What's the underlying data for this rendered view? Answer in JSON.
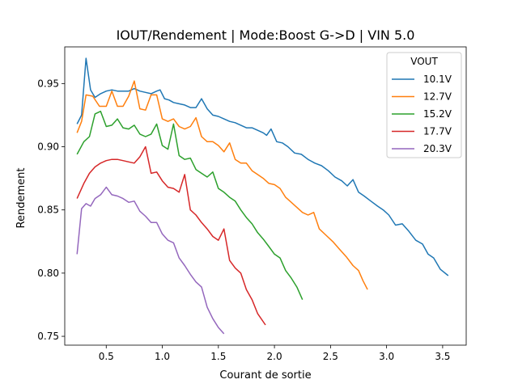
{
  "chart_data": {
    "type": "line",
    "title": "IOUT/Rendement | Mode:Boost G->D | VIN 5.0",
    "xlabel": "Courant de sortie",
    "ylabel": "Rendement",
    "xlim": [
      0.13,
      3.71
    ],
    "ylim": [
      0.743,
      0.979
    ],
    "x_ticks": [
      0.5,
      1.0,
      1.5,
      2.0,
      2.5,
      3.0,
      3.5
    ],
    "x_tick_labels": [
      "0.5",
      "1.0",
      "1.5",
      "2.0",
      "2.5",
      "3.0",
      "3.5"
    ],
    "y_ticks": [
      0.75,
      0.8,
      0.85,
      0.9,
      0.95
    ],
    "y_tick_labels": [
      "0.75",
      "0.80",
      "0.85",
      "0.90",
      "0.95"
    ],
    "grid": false,
    "legend": {
      "title": "VOUT",
      "placement": "top-right"
    },
    "series": [
      {
        "name": "10.1V",
        "color": "#1f77b4",
        "points": [
          [
            0.24,
            0.918
          ],
          [
            0.28,
            0.925
          ],
          [
            0.32,
            0.97
          ],
          [
            0.36,
            0.945
          ],
          [
            0.4,
            0.939
          ],
          [
            0.45,
            0.942
          ],
          [
            0.5,
            0.944
          ],
          [
            0.55,
            0.945
          ],
          [
            0.6,
            0.944
          ],
          [
            0.65,
            0.944
          ],
          [
            0.7,
            0.944
          ],
          [
            0.75,
            0.946
          ],
          [
            0.8,
            0.944
          ],
          [
            0.85,
            0.943
          ],
          [
            0.9,
            0.942
          ],
          [
            0.95,
            0.944
          ],
          [
            0.98,
            0.945
          ],
          [
            1.02,
            0.938
          ],
          [
            1.06,
            0.937
          ],
          [
            1.1,
            0.935
          ],
          [
            1.15,
            0.934
          ],
          [
            1.2,
            0.933
          ],
          [
            1.25,
            0.931
          ],
          [
            1.3,
            0.931
          ],
          [
            1.35,
            0.938
          ],
          [
            1.4,
            0.93
          ],
          [
            1.45,
            0.925
          ],
          [
            1.5,
            0.924
          ],
          [
            1.55,
            0.922
          ],
          [
            1.6,
            0.92
          ],
          [
            1.65,
            0.919
          ],
          [
            1.7,
            0.917
          ],
          [
            1.75,
            0.915
          ],
          [
            1.8,
            0.915
          ],
          [
            1.85,
            0.913
          ],
          [
            1.9,
            0.911
          ],
          [
            1.93,
            0.909
          ],
          [
            1.97,
            0.914
          ],
          [
            2.02,
            0.904
          ],
          [
            2.07,
            0.903
          ],
          [
            2.12,
            0.9
          ],
          [
            2.18,
            0.895
          ],
          [
            2.24,
            0.894
          ],
          [
            2.3,
            0.89
          ],
          [
            2.36,
            0.887
          ],
          [
            2.42,
            0.885
          ],
          [
            2.48,
            0.881
          ],
          [
            2.54,
            0.876
          ],
          [
            2.6,
            0.873
          ],
          [
            2.65,
            0.869
          ],
          [
            2.7,
            0.874
          ],
          [
            2.75,
            0.864
          ],
          [
            2.8,
            0.861
          ],
          [
            2.86,
            0.857
          ],
          [
            2.92,
            0.853
          ],
          [
            2.97,
            0.85
          ],
          [
            3.02,
            0.846
          ],
          [
            3.08,
            0.838
          ],
          [
            3.14,
            0.839
          ],
          [
            3.2,
            0.833
          ],
          [
            3.26,
            0.826
          ],
          [
            3.32,
            0.823
          ],
          [
            3.37,
            0.815
          ],
          [
            3.42,
            0.812
          ],
          [
            3.48,
            0.803
          ],
          [
            3.55,
            0.798
          ]
        ]
      },
      {
        "name": "12.7V",
        "color": "#ff7f0e",
        "points": [
          [
            0.24,
            0.911
          ],
          [
            0.28,
            0.92
          ],
          [
            0.32,
            0.941
          ],
          [
            0.38,
            0.94
          ],
          [
            0.44,
            0.932
          ],
          [
            0.5,
            0.932
          ],
          [
            0.55,
            0.944
          ],
          [
            0.6,
            0.932
          ],
          [
            0.65,
            0.932
          ],
          [
            0.7,
            0.94
          ],
          [
            0.75,
            0.952
          ],
          [
            0.8,
            0.93
          ],
          [
            0.85,
            0.929
          ],
          [
            0.9,
            0.941
          ],
          [
            0.95,
            0.941
          ],
          [
            1.0,
            0.922
          ],
          [
            1.05,
            0.92
          ],
          [
            1.1,
            0.922
          ],
          [
            1.15,
            0.916
          ],
          [
            1.2,
            0.914
          ],
          [
            1.25,
            0.916
          ],
          [
            1.3,
            0.923
          ],
          [
            1.35,
            0.908
          ],
          [
            1.4,
            0.904
          ],
          [
            1.45,
            0.904
          ],
          [
            1.5,
            0.901
          ],
          [
            1.55,
            0.896
          ],
          [
            1.6,
            0.903
          ],
          [
            1.65,
            0.89
          ],
          [
            1.7,
            0.887
          ],
          [
            1.75,
            0.887
          ],
          [
            1.8,
            0.881
          ],
          [
            1.85,
            0.878
          ],
          [
            1.9,
            0.875
          ],
          [
            1.95,
            0.871
          ],
          [
            2.0,
            0.87
          ],
          [
            2.05,
            0.867
          ],
          [
            2.1,
            0.86
          ],
          [
            2.15,
            0.856
          ],
          [
            2.2,
            0.852
          ],
          [
            2.25,
            0.848
          ],
          [
            2.3,
            0.846
          ],
          [
            2.35,
            0.848
          ],
          [
            2.4,
            0.835
          ],
          [
            2.46,
            0.83
          ],
          [
            2.52,
            0.825
          ],
          [
            2.58,
            0.819
          ],
          [
            2.64,
            0.813
          ],
          [
            2.7,
            0.806
          ],
          [
            2.75,
            0.802
          ],
          [
            2.79,
            0.794
          ],
          [
            2.83,
            0.787
          ]
        ]
      },
      {
        "name": "15.2V",
        "color": "#2ca02c",
        "points": [
          [
            0.24,
            0.894
          ],
          [
            0.3,
            0.904
          ],
          [
            0.35,
            0.908
          ],
          [
            0.4,
            0.926
          ],
          [
            0.45,
            0.928
          ],
          [
            0.5,
            0.916
          ],
          [
            0.55,
            0.917
          ],
          [
            0.6,
            0.922
          ],
          [
            0.65,
            0.915
          ],
          [
            0.7,
            0.914
          ],
          [
            0.75,
            0.917
          ],
          [
            0.8,
            0.91
          ],
          [
            0.85,
            0.908
          ],
          [
            0.9,
            0.91
          ],
          [
            0.95,
            0.918
          ],
          [
            1.0,
            0.901
          ],
          [
            1.05,
            0.898
          ],
          [
            1.1,
            0.918
          ],
          [
            1.15,
            0.893
          ],
          [
            1.2,
            0.89
          ],
          [
            1.25,
            0.891
          ],
          [
            1.3,
            0.882
          ],
          [
            1.35,
            0.879
          ],
          [
            1.4,
            0.876
          ],
          [
            1.45,
            0.88
          ],
          [
            1.5,
            0.867
          ],
          [
            1.55,
            0.864
          ],
          [
            1.6,
            0.86
          ],
          [
            1.65,
            0.857
          ],
          [
            1.7,
            0.85
          ],
          [
            1.75,
            0.844
          ],
          [
            1.8,
            0.839
          ],
          [
            1.85,
            0.832
          ],
          [
            1.9,
            0.827
          ],
          [
            1.95,
            0.821
          ],
          [
            2.0,
            0.815
          ],
          [
            2.05,
            0.812
          ],
          [
            2.1,
            0.802
          ],
          [
            2.15,
            0.796
          ],
          [
            2.2,
            0.789
          ],
          [
            2.25,
            0.779
          ]
        ]
      },
      {
        "name": "17.7V",
        "color": "#d62728",
        "points": [
          [
            0.24,
            0.859
          ],
          [
            0.3,
            0.871
          ],
          [
            0.35,
            0.879
          ],
          [
            0.4,
            0.884
          ],
          [
            0.45,
            0.887
          ],
          [
            0.5,
            0.889
          ],
          [
            0.55,
            0.89
          ],
          [
            0.6,
            0.89
          ],
          [
            0.65,
            0.889
          ],
          [
            0.7,
            0.888
          ],
          [
            0.75,
            0.887
          ],
          [
            0.8,
            0.892
          ],
          [
            0.85,
            0.9
          ],
          [
            0.9,
            0.879
          ],
          [
            0.95,
            0.88
          ],
          [
            1.0,
            0.873
          ],
          [
            1.05,
            0.868
          ],
          [
            1.1,
            0.867
          ],
          [
            1.15,
            0.864
          ],
          [
            1.2,
            0.878
          ],
          [
            1.25,
            0.85
          ],
          [
            1.3,
            0.846
          ],
          [
            1.35,
            0.84
          ],
          [
            1.4,
            0.835
          ],
          [
            1.45,
            0.829
          ],
          [
            1.5,
            0.826
          ],
          [
            1.55,
            0.835
          ],
          [
            1.6,
            0.81
          ],
          [
            1.65,
            0.804
          ],
          [
            1.7,
            0.8
          ],
          [
            1.75,
            0.787
          ],
          [
            1.8,
            0.779
          ],
          [
            1.85,
            0.768
          ],
          [
            1.92,
            0.759
          ]
        ]
      },
      {
        "name": "20.3V",
        "color": "#9467bd",
        "points": [
          [
            0.24,
            0.815
          ],
          [
            0.28,
            0.851
          ],
          [
            0.32,
            0.855
          ],
          [
            0.36,
            0.853
          ],
          [
            0.4,
            0.859
          ],
          [
            0.45,
            0.862
          ],
          [
            0.5,
            0.868
          ],
          [
            0.55,
            0.862
          ],
          [
            0.6,
            0.861
          ],
          [
            0.65,
            0.859
          ],
          [
            0.7,
            0.856
          ],
          [
            0.75,
            0.857
          ],
          [
            0.8,
            0.849
          ],
          [
            0.85,
            0.845
          ],
          [
            0.9,
            0.84
          ],
          [
            0.95,
            0.84
          ],
          [
            1.0,
            0.831
          ],
          [
            1.05,
            0.826
          ],
          [
            1.1,
            0.824
          ],
          [
            1.15,
            0.812
          ],
          [
            1.2,
            0.806
          ],
          [
            1.25,
            0.799
          ],
          [
            1.3,
            0.793
          ],
          [
            1.35,
            0.789
          ],
          [
            1.4,
            0.773
          ],
          [
            1.45,
            0.764
          ],
          [
            1.5,
            0.757
          ],
          [
            1.55,
            0.752
          ]
        ]
      }
    ]
  }
}
